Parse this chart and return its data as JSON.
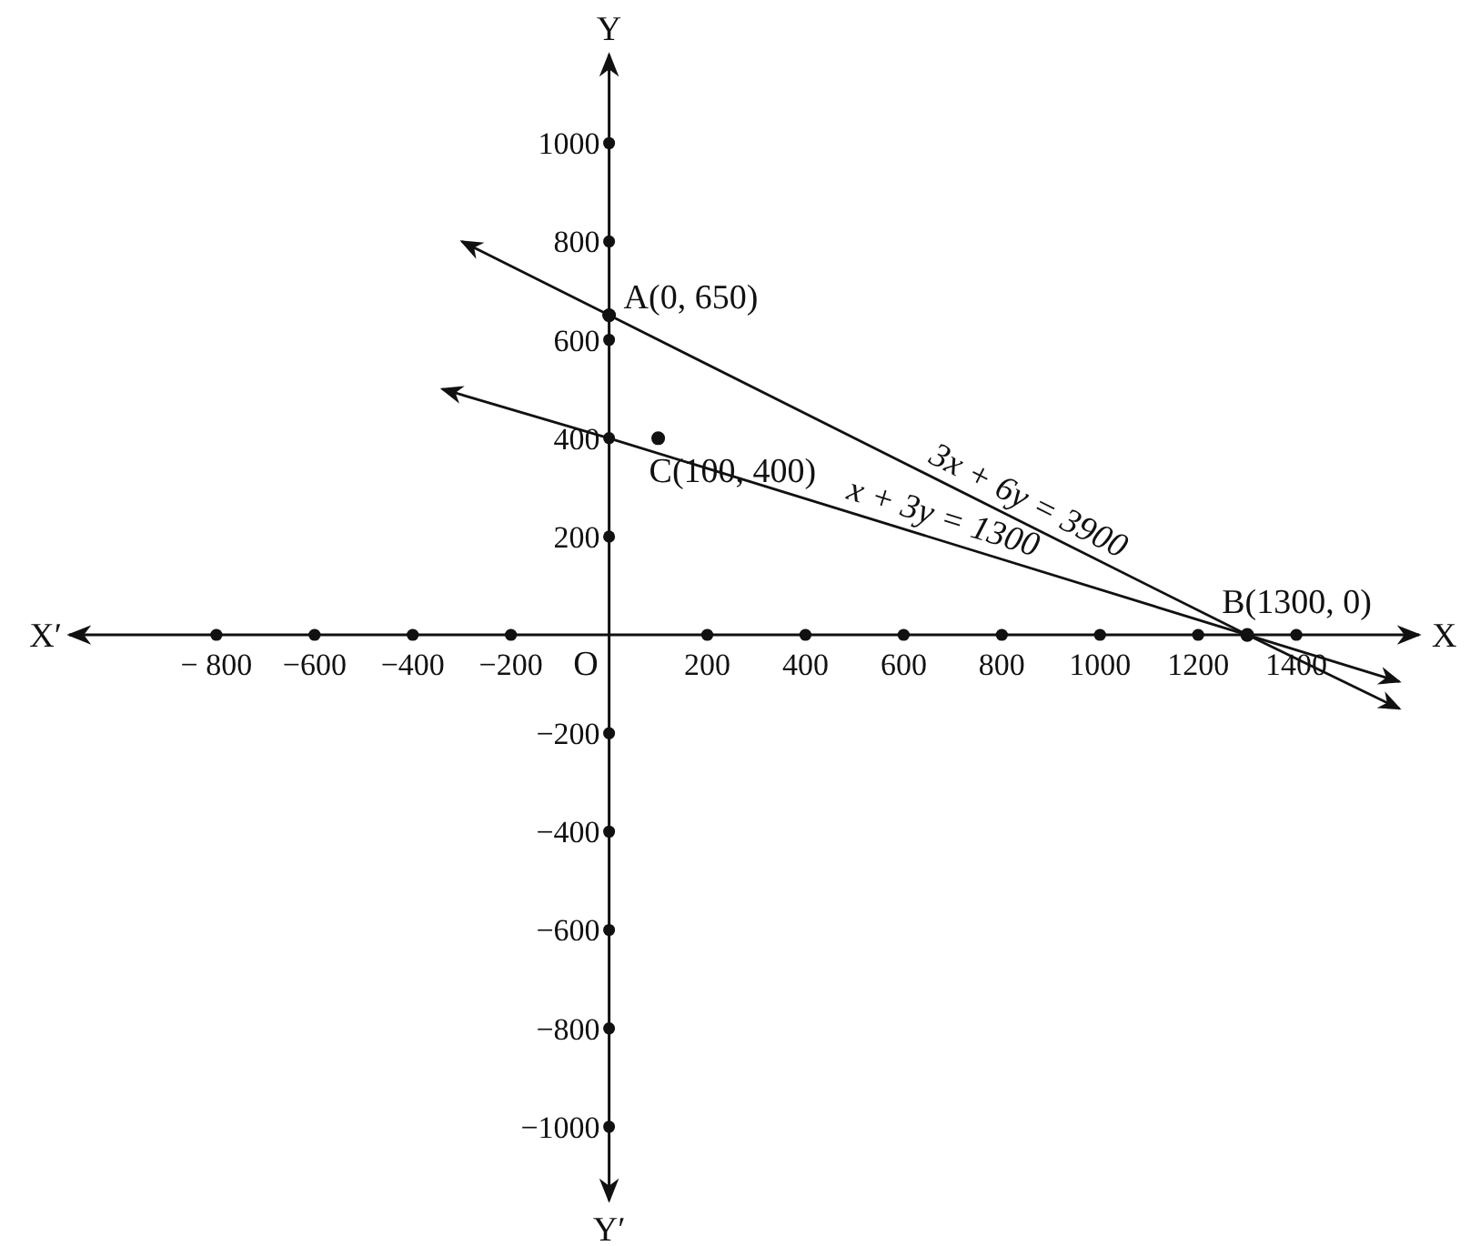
{
  "chart_data": {
    "type": "line",
    "xlabel": "X",
    "ylabel": "Y",
    "xlim": [
      -1100,
      1650
    ],
    "ylim": [
      -1150,
      1180
    ],
    "xticks": [
      {
        "value": -800,
        "label": "− 800"
      },
      {
        "value": -600,
        "label": "−600"
      },
      {
        "value": -400,
        "label": "−400"
      },
      {
        "value": -200,
        "label": "−200"
      },
      200,
      400,
      600,
      800,
      1000,
      1200,
      1400
    ],
    "yticks": [
      {
        "value": -1000,
        "label": "−1000"
      },
      {
        "value": -800,
        "label": "−800"
      },
      {
        "value": -600,
        "label": "−600"
      },
      {
        "value": -400,
        "label": "−400"
      },
      {
        "value": -200,
        "label": "−200"
      },
      200,
      400,
      600,
      800,
      1000
    ],
    "grid": false,
    "line_style": "solid",
    "series": [
      {
        "type": "line",
        "color": "#111111",
        "marker": "none",
        "x": [
          -300,
          0,
          1300,
          1610
        ],
        "values": [
          800,
          650,
          0,
          -150
        ]
      },
      {
        "type": "line",
        "color": "#111111",
        "marker": "none",
        "x": [
          -340,
          0,
          1300,
          1610
        ],
        "values": [
          500,
          400,
          0,
          -95
        ]
      },
      {
        "type": "scatter",
        "color": "#111111",
        "marker": "circle",
        "x": [
          0,
          100,
          1300
        ],
        "values": [
          650,
          400,
          0
        ]
      }
    ],
    "annotations": [
      {
        "text": "A(0, 650)",
        "x": 0,
        "y": 650
      },
      {
        "text": "C(100, 400)",
        "x": 100,
        "y": 400
      },
      {
        "text": "B(1300, 0)",
        "x": 1300,
        "y": 0
      },
      "3x + 6y = 3900",
      "x + 3y = 1300",
      "O",
      "X′",
      "Y′"
    ]
  }
}
